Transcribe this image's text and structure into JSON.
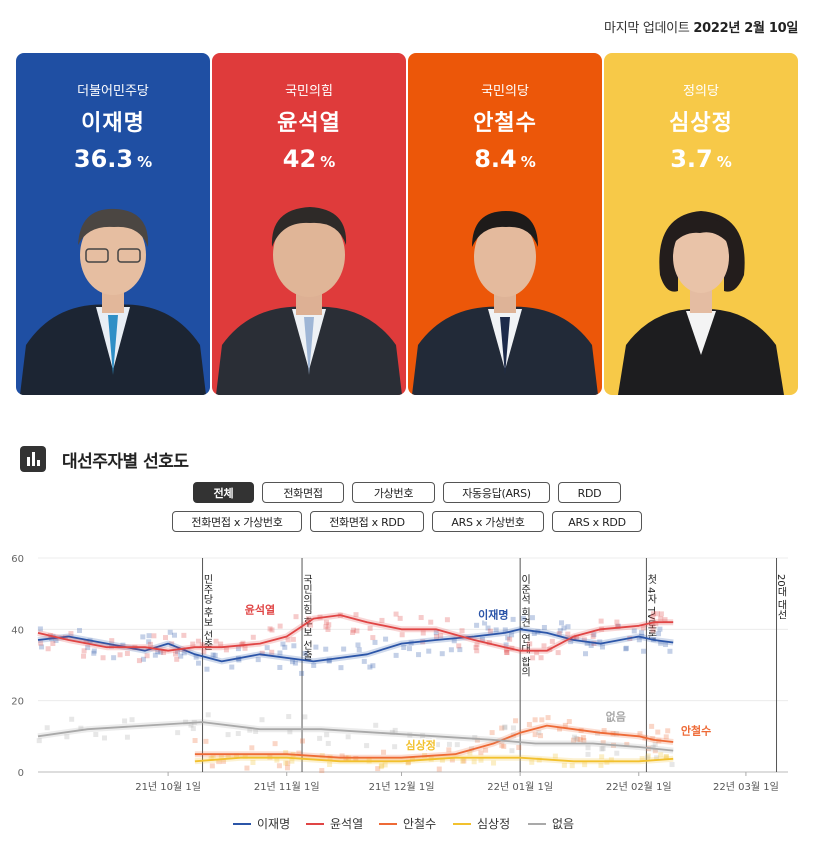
{
  "update": {
    "label": "마지막 업데이트",
    "date": "2022년 2월 10일"
  },
  "candidates": [
    {
      "party": "더불어민주당",
      "name": "이재명",
      "value": "36.3",
      "unit": "%",
      "color": "#1f4fa3"
    },
    {
      "party": "국민의힘",
      "name": "윤석열",
      "value": "42",
      "unit": "%",
      "color": "#df3b3b"
    },
    {
      "party": "국민의당",
      "name": "안철수",
      "value": "8.4",
      "unit": "%",
      "color": "#ee5a10"
    },
    {
      "party": "정의당",
      "name": "심상정",
      "value": "3.7",
      "unit": "%",
      "color": "#f6c94a"
    }
  ],
  "section": {
    "title": "대선주자별 선호도",
    "icon": "bar-chart-icon"
  },
  "filters": {
    "row1": [
      "전체",
      "전화면접",
      "가상번호",
      "자동응답(ARS)",
      "RDD"
    ],
    "row2": [
      "전화면접 x 가상번호",
      "전화면접 x RDD",
      "ARS x 가상번호",
      "ARS x RDD"
    ],
    "active": "전체"
  },
  "chart_data": {
    "type": "line",
    "ylim": [
      0,
      60
    ],
    "yticks": [
      "0",
      "20",
      "40",
      "60"
    ],
    "xticks": [
      "21년 10월 1일",
      "21년 11월 1일",
      "21년 12월 1일",
      "22년 01월 1일",
      "22년 02월 1일",
      "22년 03월 1일"
    ],
    "x_start": "2021-08-28",
    "x_end": "2022-03-12",
    "events": [
      {
        "date": "2021-10-10",
        "label": "민주당 후보 선출"
      },
      {
        "date": "2021-11-05",
        "label": "국민의힘 후보 선출"
      },
      {
        "date": "2022-01-01",
        "label": "이준석 회견, 연대 합의"
      },
      {
        "date": "2022-02-03",
        "label": "첫 4자 TV토론"
      },
      {
        "date": "2022-03-09",
        "label": "20대 대선"
      }
    ],
    "series": [
      {
        "name": "이재명",
        "color": "#2b55a8",
        "label": "이재명",
        "points": [
          [
            "2021-08-28",
            37
          ],
          [
            "2021-09-05",
            38
          ],
          [
            "2021-09-15",
            36
          ],
          [
            "2021-09-25",
            34
          ],
          [
            "2021-10-01",
            36
          ],
          [
            "2021-10-08",
            33
          ],
          [
            "2021-10-15",
            31
          ],
          [
            "2021-10-25",
            33
          ],
          [
            "2021-11-01",
            32
          ],
          [
            "2021-11-08",
            31
          ],
          [
            "2021-11-15",
            32
          ],
          [
            "2021-11-22",
            33
          ],
          [
            "2021-12-01",
            36
          ],
          [
            "2021-12-10",
            37
          ],
          [
            "2021-12-20",
            38
          ],
          [
            "2021-12-28",
            39
          ],
          [
            "2022-01-01",
            40
          ],
          [
            "2022-01-08",
            39
          ],
          [
            "2022-01-15",
            37
          ],
          [
            "2022-01-22",
            36
          ],
          [
            "2022-02-01",
            38
          ],
          [
            "2022-02-05",
            37
          ],
          [
            "2022-02-10",
            36.3
          ]
        ]
      },
      {
        "name": "윤석열",
        "color": "#e04545",
        "label": "윤석열",
        "points": [
          [
            "2021-08-28",
            39
          ],
          [
            "2021-09-05",
            37
          ],
          [
            "2021-09-15",
            35
          ],
          [
            "2021-09-25",
            35
          ],
          [
            "2021-10-01",
            34
          ],
          [
            "2021-10-08",
            35
          ],
          [
            "2021-10-15",
            35
          ],
          [
            "2021-10-25",
            36
          ],
          [
            "2021-11-01",
            38
          ],
          [
            "2021-11-08",
            43
          ],
          [
            "2021-11-15",
            44
          ],
          [
            "2021-11-22",
            42
          ],
          [
            "2021-12-01",
            40
          ],
          [
            "2021-12-10",
            40
          ],
          [
            "2021-12-20",
            37
          ],
          [
            "2021-12-28",
            35
          ],
          [
            "2022-01-01",
            34
          ],
          [
            "2022-01-08",
            34
          ],
          [
            "2022-01-15",
            38
          ],
          [
            "2022-01-22",
            40
          ],
          [
            "2022-02-01",
            41
          ],
          [
            "2022-02-05",
            42
          ],
          [
            "2022-02-10",
            42
          ]
        ]
      },
      {
        "name": "안철수",
        "color": "#ee6a36",
        "label": "안철수",
        "points": [
          [
            "2021-10-08",
            5
          ],
          [
            "2021-10-20",
            5
          ],
          [
            "2021-11-01",
            5
          ],
          [
            "2021-11-15",
            4
          ],
          [
            "2021-12-01",
            4
          ],
          [
            "2021-12-15",
            5
          ],
          [
            "2021-12-25",
            8
          ],
          [
            "2022-01-01",
            11
          ],
          [
            "2022-01-08",
            13
          ],
          [
            "2022-01-15",
            12
          ],
          [
            "2022-01-22",
            11
          ],
          [
            "2022-02-01",
            10
          ],
          [
            "2022-02-05",
            9
          ],
          [
            "2022-02-10",
            8.4
          ]
        ]
      },
      {
        "name": "심상정",
        "color": "#f2c12e",
        "label": "심상정",
        "points": [
          [
            "2021-10-08",
            3
          ],
          [
            "2021-10-20",
            4
          ],
          [
            "2021-11-01",
            4
          ],
          [
            "2021-11-15",
            3
          ],
          [
            "2021-12-01",
            3
          ],
          [
            "2021-12-15",
            4
          ],
          [
            "2022-01-01",
            4
          ],
          [
            "2022-01-15",
            3
          ],
          [
            "2022-02-01",
            3
          ],
          [
            "2022-02-10",
            3.7
          ]
        ]
      },
      {
        "name": "없음",
        "color": "#a9a9a9",
        "label": "없음",
        "points": [
          [
            "2021-08-28",
            10
          ],
          [
            "2021-09-10",
            12
          ],
          [
            "2021-09-25",
            13
          ],
          [
            "2021-10-10",
            14
          ],
          [
            "2021-10-25",
            12
          ],
          [
            "2021-11-10",
            12
          ],
          [
            "2021-11-25",
            11
          ],
          [
            "2021-12-10",
            10
          ],
          [
            "2021-12-25",
            9
          ],
          [
            "2022-01-05",
            8
          ],
          [
            "2022-01-20",
            8
          ],
          [
            "2022-02-01",
            7
          ],
          [
            "2022-02-10",
            6
          ]
        ]
      }
    ]
  },
  "legend": [
    "이재명",
    "윤석열",
    "안철수",
    "심상정",
    "없음"
  ]
}
